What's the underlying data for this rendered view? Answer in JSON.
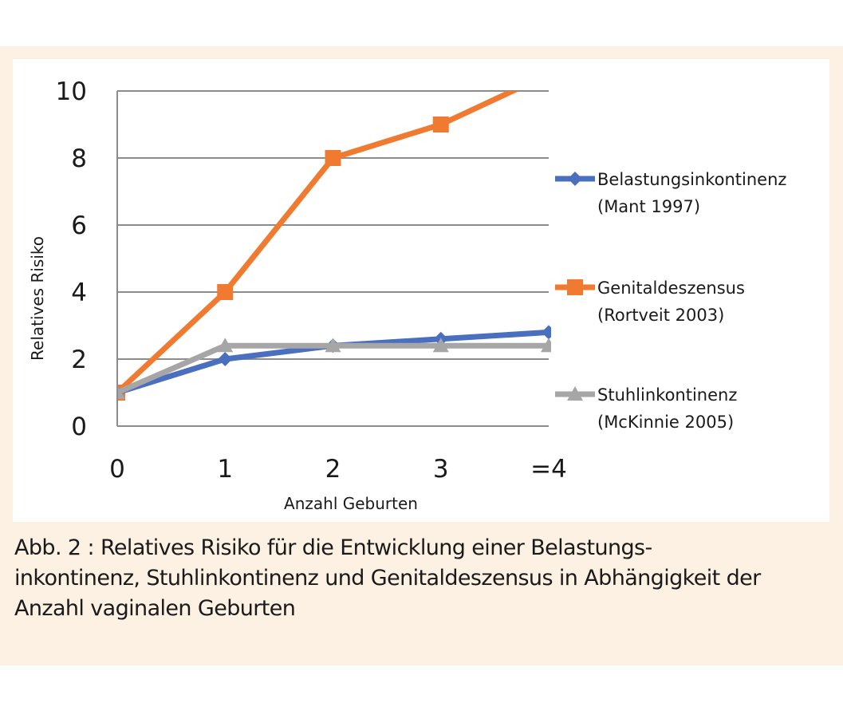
{
  "chart_data": {
    "type": "line",
    "categories": [
      "0",
      "1",
      "2",
      "3",
      "=4"
    ],
    "xlabel": "Anzahl Geburten",
    "ylabel": "Relatives Risiko",
    "ylim": [
      0,
      10
    ],
    "yticks": [
      "0",
      "2",
      "4",
      "6",
      "8",
      "10"
    ],
    "grid": true,
    "legend_position": "right",
    "series": [
      {
        "key": "belastung",
        "legend_line1": "Belastungsinkontinenz",
        "legend_line2": "(Mant 1997)",
        "color": "#4a6fbf",
        "marker": "diamond",
        "values": [
          1,
          2,
          2.4,
          2.6,
          2.8
        ]
      },
      {
        "key": "genital",
        "legend_line1": "Genitaldeszensus",
        "legend_line2": "(Rortveit 2003)",
        "color": "#f07a30",
        "marker": "square",
        "values": [
          1,
          4,
          8,
          9,
          10.5
        ]
      },
      {
        "key": "stuhl",
        "legend_line1": "Stuhlinkontinenz",
        "legend_line2": "(McKinnie 2005)",
        "color": "#a6a6a6",
        "marker": "triangle",
        "values": [
          1,
          2.4,
          2.4,
          2.4,
          2.4
        ]
      }
    ]
  },
  "caption": {
    "line1": "Abb. 2 : Relatives Risiko für die Entwicklung einer Belastungs-",
    "line2": "inkontinenz, Stuhlinkontinenz und Genitaldeszensus in Abhängigkeit der",
    "line3": "Anzahl vaginalen Geburten"
  }
}
